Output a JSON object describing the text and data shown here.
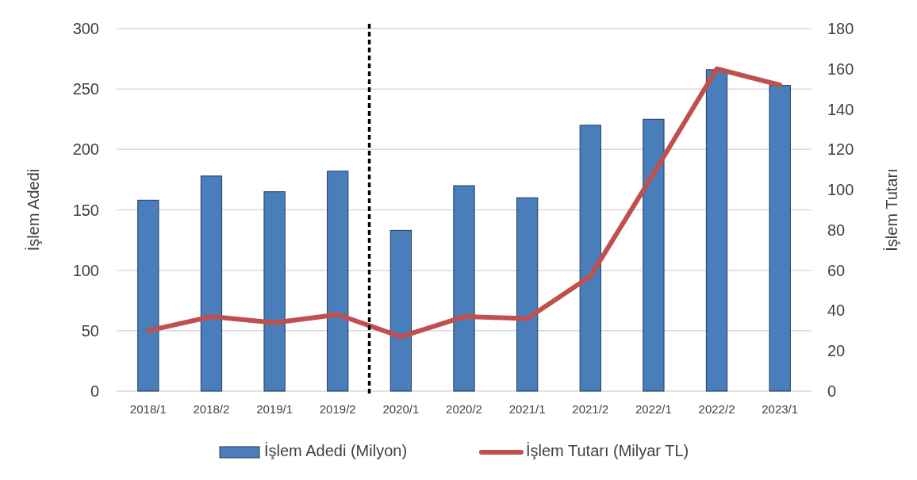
{
  "chart_data": {
    "type": "bar",
    "categories": [
      "2018/1",
      "2018/2",
      "2019/1",
      "2019/2",
      "2020/1",
      "2020/2",
      "2021/1",
      "2021/2",
      "2022/1",
      "2022/2",
      "2023/1"
    ],
    "series": [
      {
        "name": "İşlem Adedi (Milyon)",
        "color": "#4a7ebb",
        "values": [
          158,
          178,
          165,
          182,
          133,
          170,
          160,
          220,
          225,
          266,
          253
        ]
      },
      {
        "name": "İşlem Tutarı (Milyar TL)",
        "type": "line",
        "axis": "y2",
        "color": "#c0504d",
        "values": [
          30,
          37,
          34,
          38,
          27,
          37,
          36,
          57,
          108,
          160,
          152
        ]
      }
    ],
    "ylabel": "İşlem Adedi",
    "y2label": "İşlem Tutarı",
    "ylim": [
      0,
      300
    ],
    "yticks": [
      0,
      50,
      100,
      150,
      200,
      250,
      300
    ],
    "y2lim": [
      0,
      180
    ],
    "y2ticks": [
      0,
      20,
      40,
      60,
      80,
      100,
      120,
      140,
      160,
      180
    ],
    "ref_lines": [
      {
        "axis": "x",
        "value": "2020/1",
        "color": "#000000",
        "line_style": "dashed"
      }
    ],
    "grid": "y",
    "legend": "bottom",
    "marker": "none",
    "line_style": "solid"
  }
}
